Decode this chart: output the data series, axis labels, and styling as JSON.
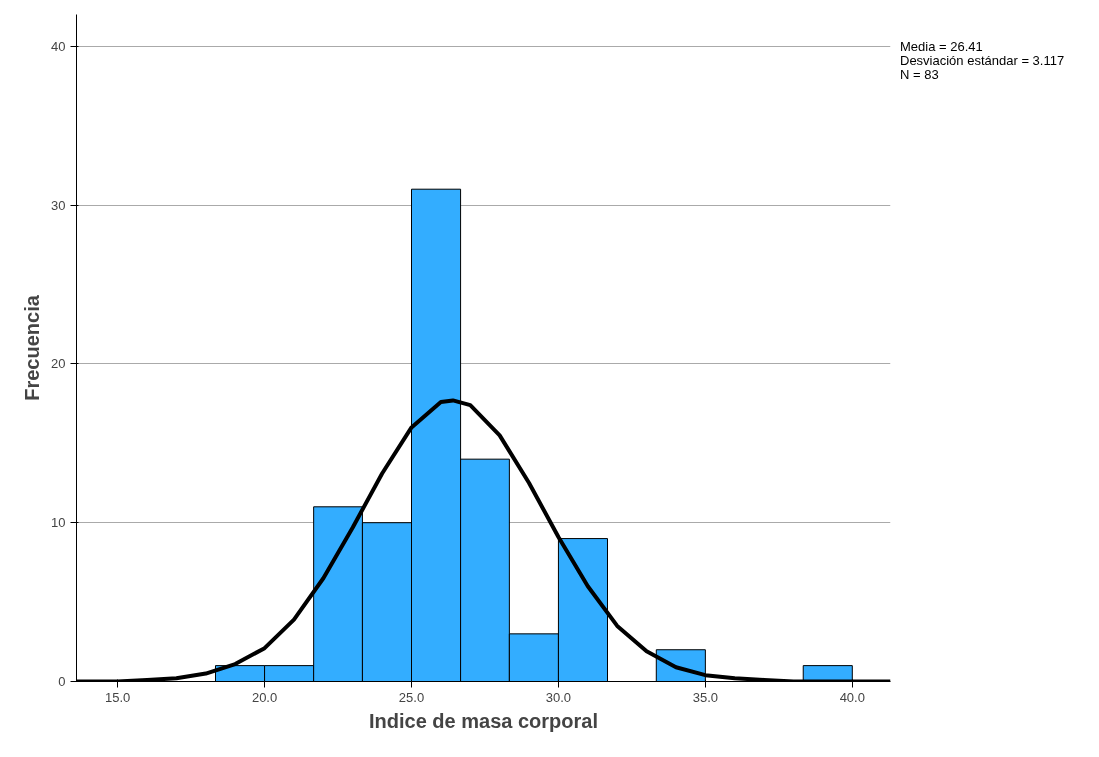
{
  "chart_data": {
    "type": "histogram",
    "xlabel": "Indice de masa corporal",
    "ylabel": "Frecuencia",
    "bins": [
      18.33,
      20,
      21.67,
      23.33,
      25,
      26.67,
      28.33,
      30,
      31.67,
      33.33,
      35,
      36.67,
      38.33,
      40
    ],
    "values": [
      1,
      1,
      11,
      10,
      31,
      14,
      3,
      9,
      0,
      2,
      0,
      0,
      1
    ],
    "color": "#33adff",
    "series": [
      {
        "type": "line",
        "color": "#000000",
        "x": [
          13.6,
          15,
          16,
          17,
          18,
          19,
          20,
          21,
          22,
          23,
          24,
          25,
          26,
          26.41,
          27,
          28,
          29,
          30,
          31,
          32,
          33,
          34,
          35,
          36,
          37,
          38,
          39,
          40,
          41.3
        ],
        "values": [
          0,
          0,
          0.1,
          0.2,
          0.5,
          1.1,
          2.1,
          3.9,
          6.5,
          9.7,
          13.1,
          16,
          17.6,
          17.7,
          17.4,
          15.5,
          12.5,
          9.1,
          6,
          3.5,
          1.9,
          0.9,
          0.4,
          0.2,
          0.1,
          0,
          0,
          0,
          0
        ]
      }
    ],
    "xlim": [
      13.6,
      41.3
    ],
    "ylim": [
      0,
      42
    ],
    "xticks": [
      {
        "value": 15,
        "label": "15.0"
      },
      {
        "value": 20,
        "label": "20.0"
      },
      {
        "value": 25,
        "label": "25.0"
      },
      {
        "value": 30,
        "label": "30.0"
      },
      {
        "value": 35,
        "label": "35.0"
      },
      {
        "value": 40,
        "label": "40.0"
      }
    ],
    "yticks": [
      0,
      10,
      20,
      30,
      40
    ],
    "grid": "y",
    "annotations": [
      "Media = 26.41",
      "Desviación estándar = 3.117",
      "N = 83"
    ]
  }
}
